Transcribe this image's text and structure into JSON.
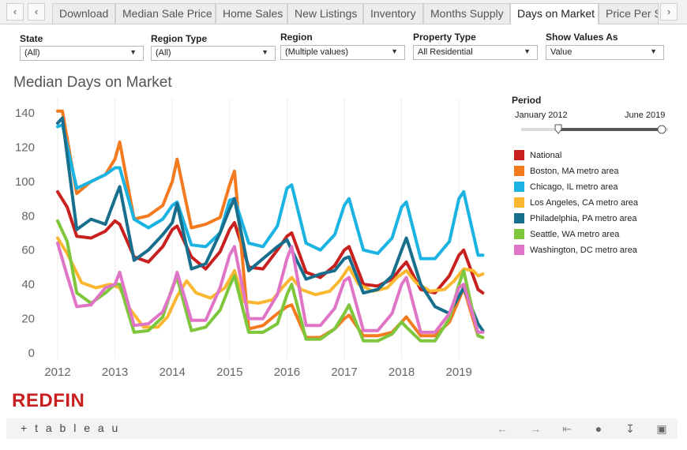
{
  "tabs": {
    "items": [
      "Download",
      "Median Sale Price",
      "Home Sales",
      "New Listings",
      "Inventory",
      "Months Supply",
      "Days on Market",
      "Price Per S"
    ],
    "active_index": 6
  },
  "filters": {
    "state": {
      "label": "State",
      "value": "(All)"
    },
    "region_type": {
      "label": "Region Type",
      "value": "(All)"
    },
    "region": {
      "label": "Region",
      "value": "(Multiple values)"
    },
    "property_type": {
      "label": "Property Type",
      "value": "All Residential"
    },
    "show_values_as": {
      "label": "Show Values As",
      "value": "Value"
    }
  },
  "period": {
    "title": "Period",
    "start": "January 2012",
    "end": "June 2019"
  },
  "logo_text": "REDFIN",
  "footer": {
    "brand": "+ t a b l e a u"
  },
  "icons": {
    "tab_prev": "chevron-left-icon",
    "tab_next": "chevron-right-icon",
    "undo": "arrow-left-icon",
    "redo": "arrow-right-icon",
    "revert": "revert-icon",
    "share": "share-icon",
    "download": "download-icon",
    "fullscreen": "fullscreen-icon"
  },
  "chart_data": {
    "type": "line",
    "title": "Median Days on Market",
    "xlabel": "",
    "ylabel": "",
    "x_ticks": [
      "2012",
      "2013",
      "2014",
      "2015",
      "2016",
      "2017",
      "2018",
      "2019"
    ],
    "y_ticks": [
      0,
      20,
      40,
      60,
      80,
      100,
      120,
      140
    ],
    "ylim": [
      0,
      145
    ],
    "xlim": [
      "2012-01",
      "2019-06"
    ],
    "grid": "vertical",
    "legend_position": "right",
    "series": [
      {
        "name": "National",
        "color": "#c8201e",
        "points": [
          [
            "2012-01",
            94
          ],
          [
            "2012-03",
            85
          ],
          [
            "2012-05",
            68
          ],
          [
            "2012-08",
            67
          ],
          [
            "2012-11",
            71
          ],
          [
            "2013-01",
            77
          ],
          [
            "2013-02",
            75
          ],
          [
            "2013-05",
            56
          ],
          [
            "2013-08",
            53
          ],
          [
            "2013-11",
            62
          ],
          [
            "2014-01",
            72
          ],
          [
            "2014-02",
            74
          ],
          [
            "2014-05",
            56
          ],
          [
            "2014-08",
            49
          ],
          [
            "2014-11",
            59
          ],
          [
            "2015-01",
            72
          ],
          [
            "2015-02",
            76
          ],
          [
            "2015-05",
            50
          ],
          [
            "2015-08",
            49
          ],
          [
            "2015-11",
            60
          ],
          [
            "2016-01",
            68
          ],
          [
            "2016-02",
            70
          ],
          [
            "2016-05",
            47
          ],
          [
            "2016-08",
            44
          ],
          [
            "2016-11",
            51
          ],
          [
            "2017-01",
            60
          ],
          [
            "2017-02",
            62
          ],
          [
            "2017-05",
            40
          ],
          [
            "2017-08",
            39
          ],
          [
            "2017-11",
            43
          ],
          [
            "2018-01",
            50
          ],
          [
            "2018-02",
            53
          ],
          [
            "2018-05",
            37
          ],
          [
            "2018-08",
            35
          ],
          [
            "2018-11",
            45
          ],
          [
            "2019-01",
            57
          ],
          [
            "2019-02",
            60
          ],
          [
            "2019-05",
            37
          ],
          [
            "2019-06",
            35
          ]
        ]
      },
      {
        "name": "Boston, MA metro area",
        "color": "#f47a20",
        "points": [
          [
            "2012-01",
            141
          ],
          [
            "2012-02",
            141
          ],
          [
            "2012-05",
            93
          ],
          [
            "2012-08",
            100
          ],
          [
            "2012-11",
            104
          ],
          [
            "2013-01",
            113
          ],
          [
            "2013-02",
            123
          ],
          [
            "2013-05",
            78
          ],
          [
            "2013-08",
            80
          ],
          [
            "2013-11",
            86
          ],
          [
            "2014-01",
            100
          ],
          [
            "2014-02",
            113
          ],
          [
            "2014-05",
            73
          ],
          [
            "2014-08",
            75
          ],
          [
            "2014-11",
            79
          ],
          [
            "2015-01",
            98
          ],
          [
            "2015-02",
            106
          ],
          [
            "2015-05",
            14
          ],
          [
            "2015-08",
            16
          ],
          [
            "2015-11",
            23
          ],
          [
            "2016-01",
            27
          ],
          [
            "2016-02",
            28
          ],
          [
            "2016-05",
            9
          ],
          [
            "2016-08",
            9
          ],
          [
            "2016-11",
            14
          ],
          [
            "2017-01",
            20
          ],
          [
            "2017-02",
            22
          ],
          [
            "2017-05",
            10
          ],
          [
            "2017-08",
            10
          ],
          [
            "2017-11",
            12
          ],
          [
            "2018-01",
            18
          ],
          [
            "2018-02",
            21
          ],
          [
            "2018-05",
            10
          ],
          [
            "2018-08",
            10
          ],
          [
            "2018-11",
            18
          ],
          [
            "2019-01",
            31
          ],
          [
            "2019-02",
            38
          ],
          [
            "2019-05",
            10
          ],
          [
            "2019-06",
            9
          ]
        ]
      },
      {
        "name": "Chicago, IL metro area",
        "color": "#1ab3e2",
        "points": [
          [
            "2012-01",
            132
          ],
          [
            "2012-02",
            133
          ],
          [
            "2012-05",
            96
          ],
          [
            "2012-08",
            100
          ],
          [
            "2012-11",
            104
          ],
          [
            "2013-01",
            108
          ],
          [
            "2013-02",
            108
          ],
          [
            "2013-05",
            78
          ],
          [
            "2013-08",
            73
          ],
          [
            "2013-11",
            78
          ],
          [
            "2014-01",
            86
          ],
          [
            "2014-02",
            88
          ],
          [
            "2014-05",
            63
          ],
          [
            "2014-08",
            62
          ],
          [
            "2014-11",
            70
          ],
          [
            "2015-01",
            89
          ],
          [
            "2015-02",
            90
          ],
          [
            "2015-05",
            64
          ],
          [
            "2015-08",
            62
          ],
          [
            "2015-11",
            74
          ],
          [
            "2016-01",
            96
          ],
          [
            "2016-02",
            98
          ],
          [
            "2016-05",
            64
          ],
          [
            "2016-08",
            60
          ],
          [
            "2016-11",
            69
          ],
          [
            "2017-01",
            86
          ],
          [
            "2017-02",
            90
          ],
          [
            "2017-05",
            60
          ],
          [
            "2017-08",
            58
          ],
          [
            "2017-11",
            67
          ],
          [
            "2018-01",
            85
          ],
          [
            "2018-02",
            88
          ],
          [
            "2018-05",
            55
          ],
          [
            "2018-08",
            55
          ],
          [
            "2018-11",
            65
          ],
          [
            "2019-01",
            90
          ],
          [
            "2019-02",
            94
          ],
          [
            "2019-05",
            57
          ],
          [
            "2019-06",
            57
          ]
        ]
      },
      {
        "name": "Los Angeles, CA metro area",
        "color": "#fbb730",
        "points": [
          [
            "2012-01",
            67
          ],
          [
            "2012-03",
            58
          ],
          [
            "2012-06",
            41
          ],
          [
            "2012-09",
            38
          ],
          [
            "2012-12",
            40
          ],
          [
            "2013-02",
            38
          ],
          [
            "2013-04",
            26
          ],
          [
            "2013-07",
            15
          ],
          [
            "2013-10",
            15
          ],
          [
            "2013-12",
            21
          ],
          [
            "2014-02",
            33
          ],
          [
            "2014-04",
            42
          ],
          [
            "2014-06",
            35
          ],
          [
            "2014-09",
            32
          ],
          [
            "2014-12",
            38
          ],
          [
            "2015-02",
            48
          ],
          [
            "2015-04",
            30
          ],
          [
            "2015-07",
            29
          ],
          [
            "2015-10",
            31
          ],
          [
            "2015-12",
            38
          ],
          [
            "2016-02",
            44
          ],
          [
            "2016-04",
            37
          ],
          [
            "2016-07",
            34
          ],
          [
            "2016-10",
            36
          ],
          [
            "2016-12",
            42
          ],
          [
            "2017-02",
            50
          ],
          [
            "2017-04",
            40
          ],
          [
            "2017-07",
            36
          ],
          [
            "2017-10",
            38
          ],
          [
            "2017-12",
            44
          ],
          [
            "2018-02",
            48
          ],
          [
            "2018-04",
            41
          ],
          [
            "2018-07",
            36
          ],
          [
            "2018-10",
            37
          ],
          [
            "2018-12",
            42
          ],
          [
            "2019-02",
            49
          ],
          [
            "2019-04",
            48
          ],
          [
            "2019-05",
            45
          ],
          [
            "2019-06",
            46
          ]
        ]
      },
      {
        "name": "Philadelphia, PA metro area",
        "color": "#176f8d",
        "points": [
          [
            "2012-01",
            134
          ],
          [
            "2012-02",
            137
          ],
          [
            "2012-05",
            72
          ],
          [
            "2012-08",
            78
          ],
          [
            "2012-11",
            75
          ],
          [
            "2013-01",
            90
          ],
          [
            "2013-02",
            97
          ],
          [
            "2013-05",
            54
          ],
          [
            "2013-08",
            60
          ],
          [
            "2013-11",
            69
          ],
          [
            "2014-01",
            76
          ],
          [
            "2014-02",
            87
          ],
          [
            "2014-05",
            49
          ],
          [
            "2014-08",
            52
          ],
          [
            "2014-11",
            70
          ],
          [
            "2015-01",
            84
          ],
          [
            "2015-02",
            90
          ],
          [
            "2015-05",
            48
          ],
          [
            "2015-08",
            55
          ],
          [
            "2015-11",
            62
          ],
          [
            "2016-01",
            66
          ],
          [
            "2016-02",
            60
          ],
          [
            "2016-05",
            43
          ],
          [
            "2016-08",
            46
          ],
          [
            "2016-11",
            48
          ],
          [
            "2017-01",
            55
          ],
          [
            "2017-02",
            56
          ],
          [
            "2017-05",
            35
          ],
          [
            "2017-08",
            37
          ],
          [
            "2017-11",
            45
          ],
          [
            "2018-01",
            60
          ],
          [
            "2018-02",
            67
          ],
          [
            "2018-05",
            40
          ],
          [
            "2018-08",
            27
          ],
          [
            "2018-11",
            23
          ],
          [
            "2019-01",
            33
          ],
          [
            "2019-02",
            38
          ],
          [
            "2019-05",
            17
          ],
          [
            "2019-06",
            13
          ]
        ]
      },
      {
        "name": "Seattle, WA metro area",
        "color": "#7ec63b",
        "points": [
          [
            "2012-01",
            77
          ],
          [
            "2012-03",
            65
          ],
          [
            "2012-05",
            35
          ],
          [
            "2012-08",
            29
          ],
          [
            "2012-11",
            35
          ],
          [
            "2013-01",
            40
          ],
          [
            "2013-02",
            40
          ],
          [
            "2013-05",
            12
          ],
          [
            "2013-08",
            13
          ],
          [
            "2013-11",
            21
          ],
          [
            "2014-01",
            38
          ],
          [
            "2014-02",
            44
          ],
          [
            "2014-05",
            13
          ],
          [
            "2014-08",
            15
          ],
          [
            "2014-11",
            25
          ],
          [
            "2015-01",
            39
          ],
          [
            "2015-02",
            45
          ],
          [
            "2015-05",
            12
          ],
          [
            "2015-08",
            12
          ],
          [
            "2015-11",
            17
          ],
          [
            "2016-01",
            34
          ],
          [
            "2016-02",
            40
          ],
          [
            "2016-05",
            8
          ],
          [
            "2016-08",
            8
          ],
          [
            "2016-11",
            14
          ],
          [
            "2017-01",
            23
          ],
          [
            "2017-02",
            28
          ],
          [
            "2017-05",
            7
          ],
          [
            "2017-08",
            7
          ],
          [
            "2017-11",
            11
          ],
          [
            "2018-01",
            18
          ],
          [
            "2018-02",
            15
          ],
          [
            "2018-05",
            7
          ],
          [
            "2018-08",
            7
          ],
          [
            "2018-11",
            20
          ],
          [
            "2019-01",
            40
          ],
          [
            "2019-02",
            48
          ],
          [
            "2019-05",
            10
          ],
          [
            "2019-06",
            9
          ]
        ]
      },
      {
        "name": "Washington, DC metro area",
        "color": "#e075c7",
        "points": [
          [
            "2012-01",
            64
          ],
          [
            "2012-03",
            45
          ],
          [
            "2012-05",
            27
          ],
          [
            "2012-08",
            28
          ],
          [
            "2012-11",
            38
          ],
          [
            "2013-01",
            40
          ],
          [
            "2013-02",
            47
          ],
          [
            "2013-05",
            16
          ],
          [
            "2013-08",
            17
          ],
          [
            "2013-11",
            24
          ],
          [
            "2014-01",
            37
          ],
          [
            "2014-02",
            47
          ],
          [
            "2014-05",
            19
          ],
          [
            "2014-08",
            19
          ],
          [
            "2014-11",
            38
          ],
          [
            "2015-01",
            57
          ],
          [
            "2015-02",
            62
          ],
          [
            "2015-05",
            20
          ],
          [
            "2015-08",
            20
          ],
          [
            "2015-11",
            34
          ],
          [
            "2016-01",
            55
          ],
          [
            "2016-02",
            62
          ],
          [
            "2016-05",
            16
          ],
          [
            "2016-08",
            16
          ],
          [
            "2016-11",
            26
          ],
          [
            "2017-01",
            42
          ],
          [
            "2017-02",
            44
          ],
          [
            "2017-05",
            13
          ],
          [
            "2017-08",
            13
          ],
          [
            "2017-11",
            23
          ],
          [
            "2018-01",
            40
          ],
          [
            "2018-02",
            44
          ],
          [
            "2018-05",
            12
          ],
          [
            "2018-08",
            12
          ],
          [
            "2018-11",
            23
          ],
          [
            "2019-01",
            38
          ],
          [
            "2019-02",
            40
          ],
          [
            "2019-05",
            12
          ],
          [
            "2019-06",
            12
          ]
        ]
      }
    ]
  }
}
